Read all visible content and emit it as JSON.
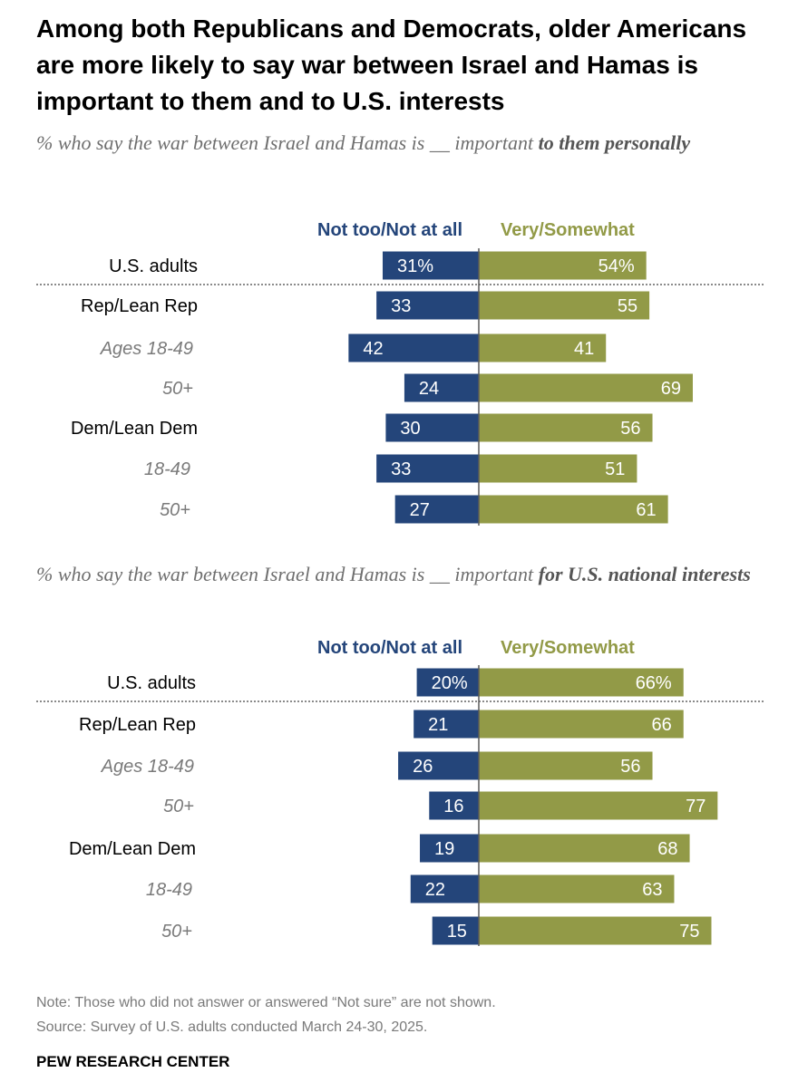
{
  "title": "Among both Republicans and Democrats, older Americans are more likely to say war between Israel and Hamas is important to them and to U.S. interests",
  "colors": {
    "negative": "#24457a",
    "positive": "#929a47",
    "label_dark": "#000000",
    "label_gray": "#7a7a7a"
  },
  "chart_data": [
    {
      "type": "bar",
      "subtitle_prefix": "% who say the war between Israel and Hamas is __ important",
      "subtitle_bold": "to them personally",
      "column_headers": {
        "negative": "Not too/Not at all",
        "positive": "Very/Somewhat"
      },
      "categories": [
        "U.S. adults",
        "Rep/Lean Rep",
        "Ages 18-49",
        "50+",
        "Dem/Lean Dem",
        "18-49",
        "50+"
      ],
      "series": [
        {
          "name": "Not too/Not at all",
          "values": [
            31,
            33,
            42,
            24,
            30,
            33,
            27
          ],
          "labels": [
            "31%",
            "33",
            "42",
            "24",
            "30",
            "33",
            "27"
          ]
        },
        {
          "name": "Very/Somewhat",
          "values": [
            54,
            55,
            41,
            69,
            56,
            51,
            61
          ],
          "labels": [
            "54%",
            "55",
            "41",
            "69",
            "56",
            "51",
            "61"
          ]
        }
      ]
    },
    {
      "type": "bar",
      "subtitle_prefix": "% who say the war between Israel and Hamas is __ important",
      "subtitle_bold": "for U.S. national interests",
      "column_headers": {
        "negative": "Not too/Not at all",
        "positive": "Very/Somewhat"
      },
      "categories": [
        "U.S. adults",
        "Rep/Lean Rep",
        "Ages 18-49",
        "50+",
        "Dem/Lean Dem",
        "18-49",
        "50+"
      ],
      "series": [
        {
          "name": "Not too/Not at all",
          "values": [
            20,
            21,
            26,
            16,
            19,
            22,
            15
          ],
          "labels": [
            "20%",
            "21",
            "26",
            "16",
            "19",
            "22",
            "15"
          ]
        },
        {
          "name": "Very/Somewhat",
          "values": [
            66,
            66,
            56,
            77,
            68,
            63,
            75
          ],
          "labels": [
            "66%",
            "66",
            "56",
            "77",
            "68",
            "63",
            "75"
          ]
        }
      ]
    }
  ],
  "note": "Note: Those who did not answer or answered “Not sure” are not shown.",
  "source": "Source: Survey of U.S. adults conducted March 24-30, 2025.",
  "brand": "PEW RESEARCH CENTER"
}
